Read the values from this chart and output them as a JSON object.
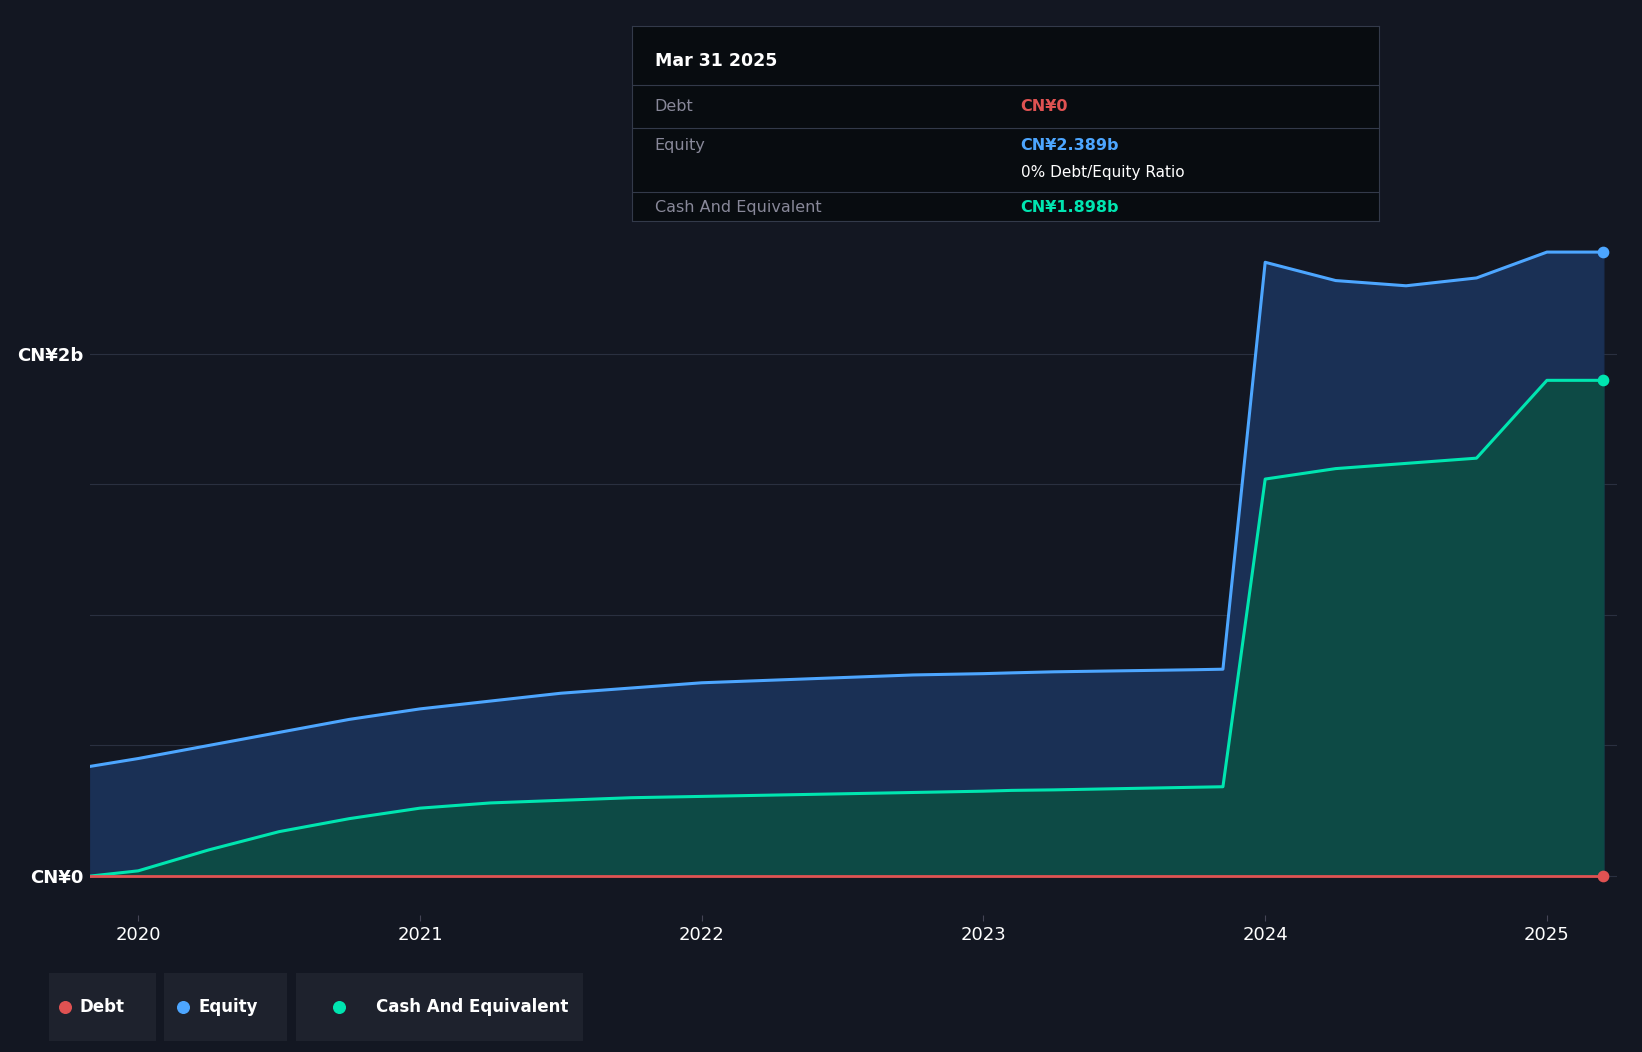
{
  "background_color": "#131722",
  "plot_bg_color": "#131722",
  "ylabel_top": "CN¥2b",
  "ylabel_bottom": "CN¥0",
  "x_ticks": [
    2020,
    2021,
    2022,
    2023,
    2024,
    2025
  ],
  "ylim": [
    -0.15,
    2.75
  ],
  "y_gridlines": [
    0.0,
    0.5,
    1.0,
    1.5,
    2.0
  ],
  "grid_color": "#2a3040",
  "equity_color": "#4da6ff",
  "cash_color": "#00e5b0",
  "debt_color": "#e05252",
  "equity_fill_color": "#1a3055",
  "cash_fill_color": "#0d4a45",
  "tooltip": {
    "date": "Mar 31 2025",
    "debt_label": "Debt",
    "debt_value": "CN¥0",
    "debt_value_color": "#e05252",
    "equity_label": "Equity",
    "equity_value": "CN¥2.389b",
    "equity_value_color": "#4da6ff",
    "ratio_text": "0% Debt/Equity Ratio",
    "ratio_color": "#ffffff",
    "cash_label": "Cash And Equivalent",
    "cash_value": "CN¥1.898b",
    "cash_value_color": "#00e5b0",
    "bg_color": "#080c10",
    "border_color": "#333a4a",
    "label_color": "#888899"
  },
  "legend": {
    "debt_label": "Debt",
    "equity_label": "Equity",
    "cash_label": "Cash And Equivalent",
    "item_bg": "#1e222d"
  },
  "equity_data": {
    "x": [
      2019.83,
      2020.0,
      2020.25,
      2020.5,
      2020.75,
      2021.0,
      2021.25,
      2021.5,
      2021.75,
      2022.0,
      2022.25,
      2022.5,
      2022.75,
      2023.0,
      2023.1,
      2023.25,
      2023.5,
      2023.75,
      2023.85,
      2024.0,
      2024.25,
      2024.5,
      2024.75,
      2025.0,
      2025.2
    ],
    "y": [
      0.42,
      0.45,
      0.5,
      0.55,
      0.6,
      0.64,
      0.67,
      0.7,
      0.72,
      0.74,
      0.75,
      0.76,
      0.77,
      0.775,
      0.778,
      0.782,
      0.786,
      0.79,
      0.792,
      2.35,
      2.28,
      2.26,
      2.29,
      2.389,
      2.389
    ]
  },
  "cash_data": {
    "x": [
      2019.83,
      2020.0,
      2020.25,
      2020.5,
      2020.75,
      2021.0,
      2021.25,
      2021.5,
      2021.75,
      2022.0,
      2022.25,
      2022.5,
      2022.75,
      2023.0,
      2023.1,
      2023.25,
      2023.5,
      2023.75,
      2023.85,
      2024.0,
      2024.25,
      2024.5,
      2024.75,
      2025.0,
      2025.2
    ],
    "y": [
      0.0,
      0.02,
      0.1,
      0.17,
      0.22,
      0.26,
      0.28,
      0.29,
      0.3,
      0.305,
      0.31,
      0.315,
      0.32,
      0.325,
      0.328,
      0.33,
      0.335,
      0.34,
      0.342,
      1.52,
      1.56,
      1.58,
      1.6,
      1.898,
      1.898
    ]
  },
  "debt_data": {
    "x": [
      2019.83,
      2020.0,
      2021.0,
      2022.0,
      2023.0,
      2023.85,
      2024.0,
      2025.0,
      2025.2
    ],
    "y": [
      0.0,
      0.0,
      0.0,
      0.0,
      0.0,
      0.0,
      0.0,
      0.0,
      0.0
    ]
  }
}
